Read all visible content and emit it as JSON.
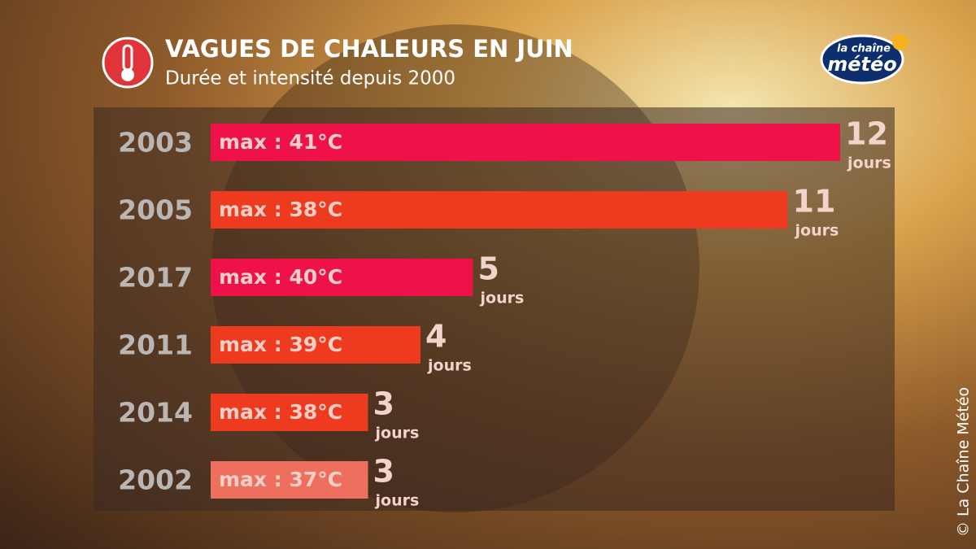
{
  "chart_data": {
    "type": "bar",
    "orientation": "horizontal",
    "title": "VAGUES DE CHALEURS EN JUIN",
    "subtitle": "Durée et intensité depuis 2000",
    "categories": [
      "2003",
      "2005",
      "2017",
      "2011",
      "2014",
      "2002"
    ],
    "values": [
      12,
      11,
      5,
      4,
      3,
      3
    ],
    "bar_labels": [
      "max : 41°C",
      "max : 38°C",
      "max : 40°C",
      "max : 39°C",
      "max : 38°C",
      "max : 37°C"
    ],
    "unit": "jours",
    "colors": [
      "#ee1248",
      "#ee3b1f",
      "#ee1248",
      "#ee3b1f",
      "#ee3b1f",
      "#ee6f5e"
    ],
    "xlim": [
      0,
      12
    ]
  },
  "logo": {
    "top": "la chaîne",
    "bottom": "météo"
  },
  "credit": "© La Chaîne Météo"
}
